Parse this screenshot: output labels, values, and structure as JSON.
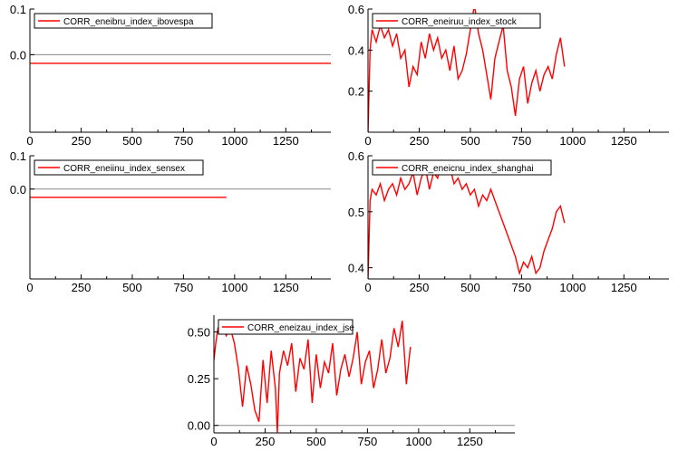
{
  "colors": {
    "series": "#ff0000",
    "zero_line": "#888888",
    "frame": "#000000"
  },
  "chart_data": [
    {
      "type": "line",
      "legend": "CORR_eneibru_index_ibovespa",
      "xlim": [
        0,
        1470
      ],
      "ylim": [
        -0.17,
        0.1
      ],
      "xticks": [
        "0",
        "250",
        "500",
        "750",
        "1000",
        "1250"
      ],
      "yticks": [
        "0.1",
        "0.0"
      ],
      "ytick_values": [
        0.1,
        0.0
      ],
      "zero_line": 0.0,
      "series": [
        {
          "x": [
            0,
            1470
          ],
          "y": [
            -0.019,
            -0.019
          ]
        }
      ]
    },
    {
      "type": "line",
      "legend": "CORR_eneiruu_index_stock",
      "xlim": [
        0,
        1470
      ],
      "ylim": [
        0.0,
        0.6
      ],
      "xticks": [
        "0",
        "250",
        "500",
        "750",
        "1000",
        "1250"
      ],
      "yticks": [
        "0.6",
        "0.4",
        "0.2"
      ],
      "ytick_values": [
        0.6,
        0.4,
        0.2
      ],
      "series": [
        {
          "x": [
            0,
            10,
            20,
            40,
            60,
            80,
            100,
            120,
            140,
            160,
            180,
            200,
            220,
            240,
            260,
            280,
            300,
            320,
            340,
            360,
            380,
            400,
            420,
            440,
            460,
            480,
            500,
            520,
            540,
            560,
            580,
            600,
            620,
            640,
            660,
            680,
            700,
            720,
            740,
            760,
            780,
            800,
            820,
            840,
            860,
            880,
            900,
            920,
            940,
            960
          ],
          "y": [
            0.0,
            0.4,
            0.5,
            0.44,
            0.52,
            0.46,
            0.5,
            0.42,
            0.48,
            0.36,
            0.4,
            0.22,
            0.32,
            0.28,
            0.44,
            0.36,
            0.48,
            0.4,
            0.46,
            0.36,
            0.4,
            0.3,
            0.42,
            0.26,
            0.3,
            0.38,
            0.5,
            0.62,
            0.48,
            0.4,
            0.28,
            0.16,
            0.36,
            0.44,
            0.52,
            0.3,
            0.22,
            0.08,
            0.26,
            0.32,
            0.14,
            0.24,
            0.3,
            0.2,
            0.28,
            0.32,
            0.26,
            0.38,
            0.46,
            0.32
          ]
        }
      ]
    },
    {
      "type": "line",
      "legend": "CORR_eneiinu_index_sensex",
      "xlim": [
        0,
        1470
      ],
      "ylim": [
        -0.27,
        0.1
      ],
      "xticks": [
        "0",
        "250",
        "500",
        "750",
        "1000",
        "1250"
      ],
      "yticks": [
        "0.1",
        "0.0"
      ],
      "ytick_values": [
        0.1,
        0.0
      ],
      "zero_line": 0.0,
      "series": [
        {
          "x": [
            0,
            960
          ],
          "y": [
            -0.025,
            -0.025
          ]
        }
      ]
    },
    {
      "type": "line",
      "legend": "CORR_eneicnu_index_shanghai",
      "xlim": [
        0,
        1470
      ],
      "ylim": [
        0.38,
        0.6
      ],
      "xticks": [
        "0",
        "250",
        "500",
        "750",
        "1000",
        "1250"
      ],
      "yticks": [
        "0.6",
        "0.5",
        "0.4"
      ],
      "ytick_values": [
        0.6,
        0.5,
        0.4
      ],
      "series": [
        {
          "x": [
            0,
            10,
            20,
            40,
            60,
            80,
            100,
            120,
            140,
            160,
            180,
            200,
            220,
            240,
            260,
            280,
            300,
            320,
            340,
            360,
            380,
            400,
            420,
            440,
            460,
            480,
            500,
            520,
            540,
            560,
            580,
            600,
            620,
            640,
            660,
            680,
            700,
            720,
            740,
            760,
            780,
            800,
            820,
            840,
            860,
            880,
            900,
            920,
            940,
            960
          ],
          "y": [
            0.38,
            0.52,
            0.54,
            0.53,
            0.55,
            0.52,
            0.54,
            0.55,
            0.53,
            0.56,
            0.54,
            0.55,
            0.57,
            0.53,
            0.56,
            0.58,
            0.54,
            0.57,
            0.56,
            0.59,
            0.57,
            0.58,
            0.55,
            0.56,
            0.54,
            0.55,
            0.53,
            0.54,
            0.51,
            0.53,
            0.52,
            0.54,
            0.52,
            0.5,
            0.48,
            0.46,
            0.44,
            0.42,
            0.39,
            0.41,
            0.4,
            0.42,
            0.39,
            0.4,
            0.43,
            0.45,
            0.47,
            0.5,
            0.51,
            0.48
          ]
        }
      ]
    },
    {
      "type": "line",
      "legend": "CORR_eneizau_index_jse",
      "xlim": [
        0,
        1470
      ],
      "ylim": [
        -0.04,
        0.59
      ],
      "xticks": [
        "0",
        "250",
        "500",
        "750",
        "1000",
        "1250"
      ],
      "yticks": [
        "0.50",
        "0.25",
        "0.00"
      ],
      "ytick_values": [
        0.5,
        0.25,
        0.0
      ],
      "zero_line": 0.0,
      "series": [
        {
          "x": [
            0,
            10,
            20,
            40,
            60,
            80,
            100,
            120,
            140,
            160,
            180,
            200,
            220,
            240,
            260,
            280,
            300,
            310,
            320,
            340,
            360,
            380,
            400,
            420,
            440,
            460,
            480,
            500,
            520,
            540,
            560,
            580,
            600,
            620,
            640,
            660,
            680,
            700,
            720,
            740,
            760,
            780,
            800,
            820,
            840,
            860,
            880,
            900,
            920,
            940,
            960
          ],
          "y": [
            0.35,
            0.45,
            0.52,
            0.56,
            0.48,
            0.52,
            0.44,
            0.3,
            0.1,
            0.32,
            0.22,
            0.08,
            0.02,
            0.35,
            0.12,
            0.4,
            0.2,
            -0.04,
            0.28,
            0.4,
            0.32,
            0.44,
            0.18,
            0.36,
            0.3,
            0.46,
            0.12,
            0.38,
            0.2,
            0.34,
            0.28,
            0.44,
            0.16,
            0.3,
            0.38,
            0.26,
            0.36,
            0.5,
            0.22,
            0.34,
            0.4,
            0.2,
            0.3,
            0.46,
            0.28,
            0.36,
            0.52,
            0.42,
            0.56,
            0.22,
            0.42
          ]
        }
      ]
    }
  ]
}
